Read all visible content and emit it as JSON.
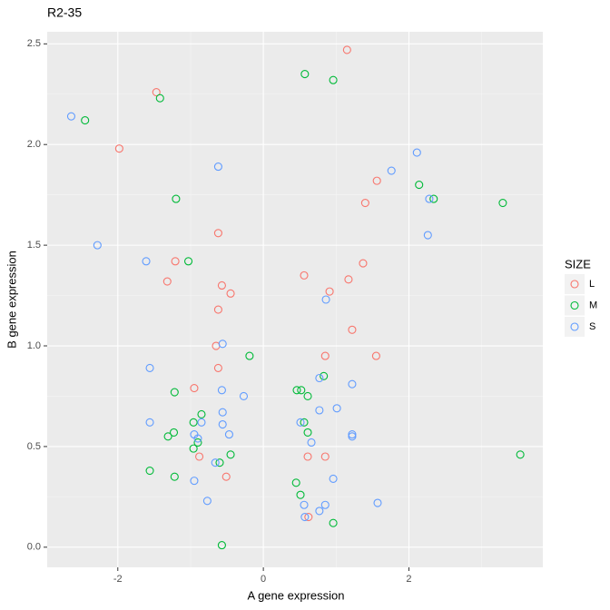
{
  "chart_data": {
    "type": "scatter",
    "title": "R2-35",
    "x_label": "A gene expression",
    "y_label": "B gene expression",
    "legend_title": "SIZE",
    "legend_position": "right",
    "xlim": [
      -2.97,
      3.84
    ],
    "ylim": [
      -0.1,
      2.56
    ],
    "xticks": [
      -2,
      0,
      2
    ],
    "yticks": [
      {
        "value": 0,
        "label": "0.0"
      },
      0.5,
      {
        "value": 1,
        "label": "1.0"
      },
      1.5,
      {
        "value": 2,
        "label": "2.0"
      },
      2.5
    ],
    "grid": true,
    "series": [
      {
        "name": "L",
        "color": "#F8766D",
        "x": [
          1.15,
          -1.47,
          -1.98,
          1.56,
          1.4,
          -0.62,
          -1.21,
          1.37,
          0.56,
          -1.32,
          -0.57,
          1.17,
          -0.45,
          0.91,
          -0.62,
          1.22,
          -0.65,
          0.85,
          1.55,
          -0.62,
          -0.95,
          -0.88,
          0.61,
          0.85,
          -0.51,
          0.62
        ],
        "values": [
          2.47,
          2.26,
          1.98,
          1.82,
          1.71,
          1.56,
          1.42,
          1.41,
          1.35,
          1.32,
          1.3,
          1.33,
          1.26,
          1.27,
          1.18,
          1.08,
          1.0,
          0.95,
          0.95,
          0.89,
          0.79,
          0.45,
          0.45,
          0.45,
          0.35,
          0.15
        ]
      },
      {
        "name": "M",
        "color": "#00BA38",
        "x": [
          0.57,
          0.96,
          -1.42,
          -2.45,
          -1.2,
          2.14,
          2.34,
          3.29,
          -1.03,
          -0.19,
          0.83,
          0.46,
          0.52,
          0.61,
          -1.22,
          -0.85,
          -0.96,
          0.56,
          -1.23,
          -1.31,
          0.61,
          -0.9,
          -0.96,
          -0.45,
          3.53,
          -1.56,
          -0.6,
          -1.22,
          0.45,
          0.51,
          0.96,
          -0.57
        ],
        "values": [
          2.35,
          2.32,
          2.23,
          2.12,
          1.73,
          1.8,
          1.73,
          1.71,
          1.42,
          0.95,
          0.85,
          0.78,
          0.78,
          0.75,
          0.77,
          0.66,
          0.62,
          0.62,
          0.57,
          0.55,
          0.57,
          0.52,
          0.49,
          0.46,
          0.46,
          0.38,
          0.42,
          0.35,
          0.32,
          0.26,
          0.12,
          0.01
        ]
      },
      {
        "name": "S",
        "color": "#619CFF",
        "x": [
          -2.64,
          2.11,
          1.76,
          -0.62,
          2.28,
          -2.28,
          2.26,
          -1.61,
          0.86,
          -0.56,
          -1.56,
          0.77,
          1.22,
          -0.57,
          -0.27,
          1.01,
          0.77,
          -0.56,
          -0.56,
          -1.56,
          -0.85,
          0.51,
          1.22,
          1.22,
          -0.47,
          0.66,
          -0.95,
          -0.9,
          -0.66,
          -0.95,
          0.96,
          -0.77,
          0.56,
          0.85,
          1.57,
          0.77,
          0.57
        ],
        "values": [
          2.14,
          1.96,
          1.87,
          1.89,
          1.73,
          1.5,
          1.55,
          1.42,
          1.23,
          1.01,
          0.89,
          0.84,
          0.81,
          0.78,
          0.75,
          0.69,
          0.68,
          0.67,
          0.61,
          0.62,
          0.62,
          0.62,
          0.56,
          0.55,
          0.56,
          0.52,
          0.56,
          0.54,
          0.42,
          0.33,
          0.34,
          0.23,
          0.21,
          0.21,
          0.22,
          0.18,
          0.15
        ]
      }
    ]
  }
}
